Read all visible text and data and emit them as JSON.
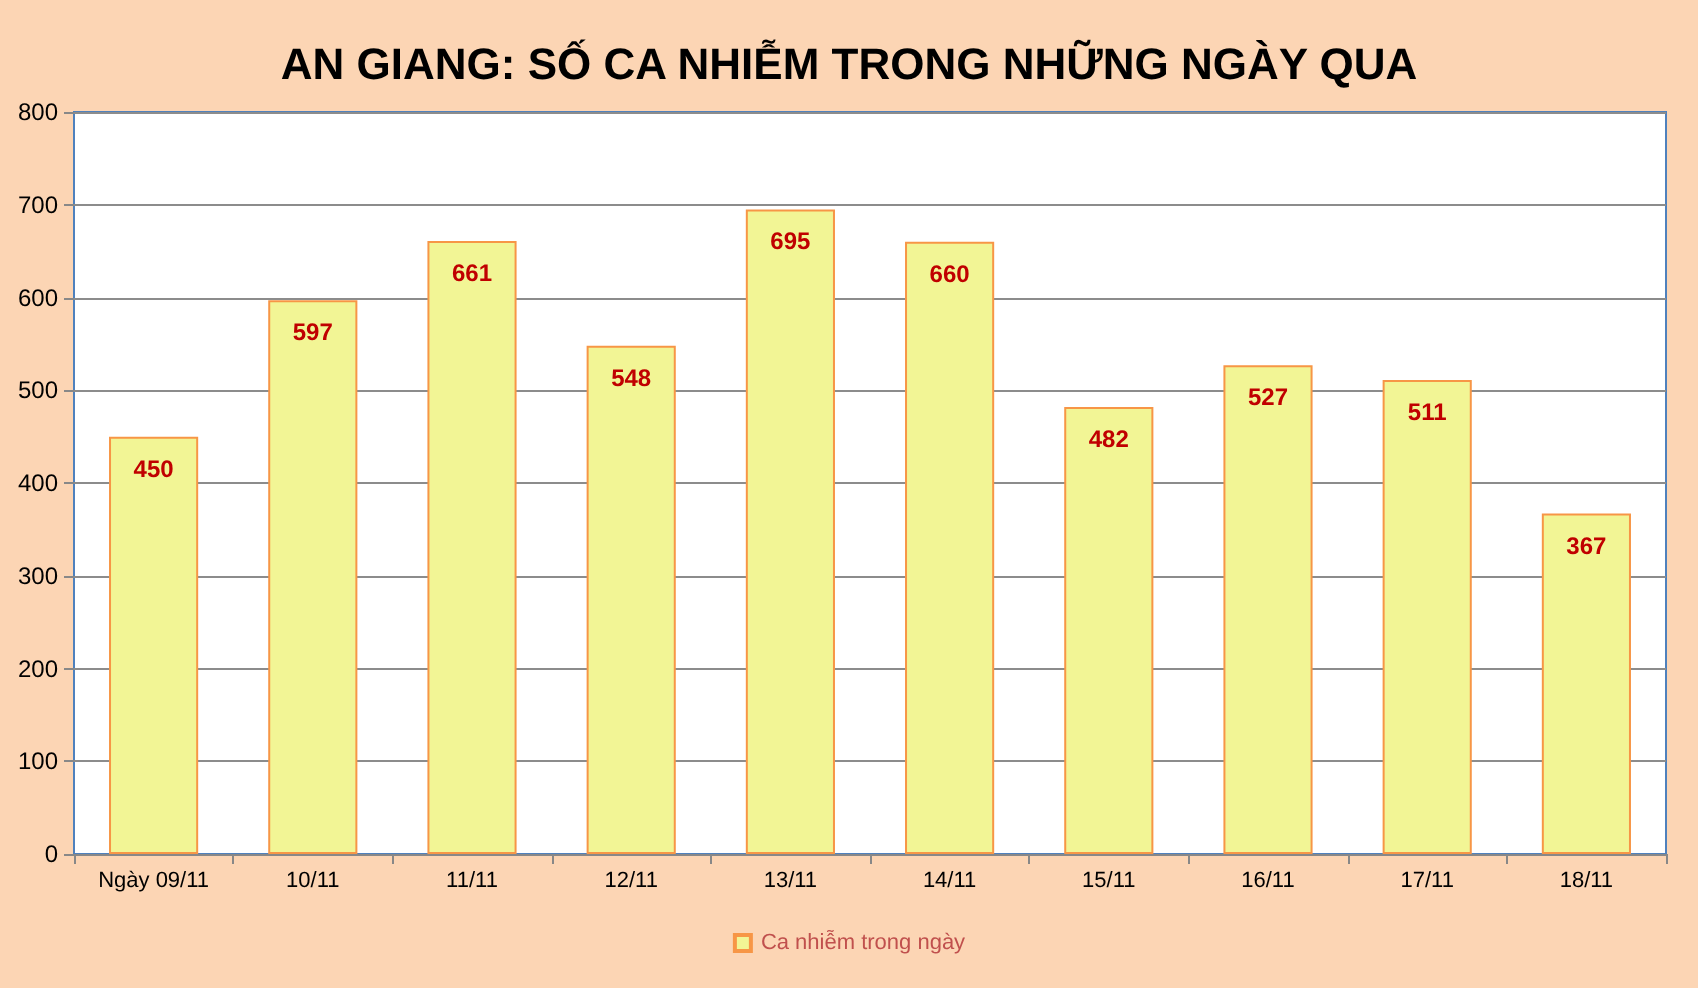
{
  "chart_data": {
    "type": "bar",
    "title": "AN GIANG: SỐ CA NHIỄM TRONG NHỮNG NGÀY QUA",
    "categories": [
      "Ngày 09/11",
      "10/11",
      "11/11",
      "12/11",
      "13/11",
      "14/11",
      "15/11",
      "16/11",
      "17/11",
      "18/11"
    ],
    "series": [
      {
        "name": "Ca nhiễm trong ngày",
        "color": "#f2f595",
        "values": [
          450,
          597,
          661,
          548,
          695,
          660,
          482,
          527,
          511,
          367
        ]
      }
    ],
    "ylim": [
      0,
      800
    ],
    "yticks": [
      0,
      100,
      200,
      300,
      400,
      500,
      600,
      700,
      800
    ],
    "grid": "y",
    "legend": "bottom",
    "data_labels": true
  }
}
